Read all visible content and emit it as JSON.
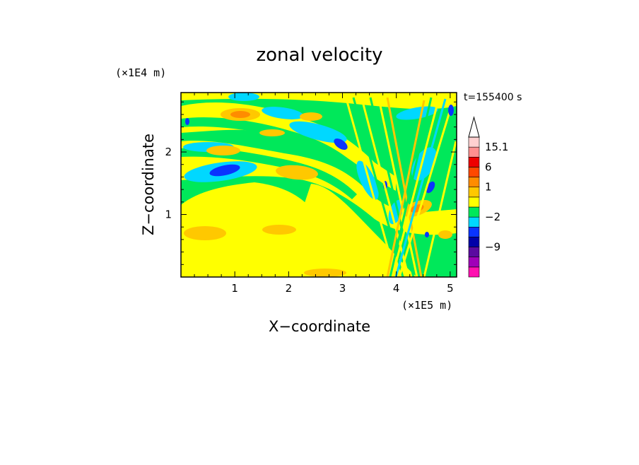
{
  "chart_data": {
    "type": "heatmap",
    "title": "zonal velocity",
    "xlabel": "X−coordinate",
    "ylabel": "Z−coordinate",
    "x_scale_note": "(×1E5 m)",
    "y_scale_note": "(×1E4 m)",
    "time_label": "t=155400 s",
    "xlim": [
      0,
      5.12
    ],
    "ylim": [
      0,
      2.95
    ],
    "x_ticks": [
      {
        "value": 1,
        "label": "1"
      },
      {
        "value": 2,
        "label": "2"
      },
      {
        "value": 3,
        "label": "3"
      },
      {
        "value": 4,
        "label": "4"
      },
      {
        "value": 5,
        "label": "5"
      }
    ],
    "y_ticks": [
      {
        "value": 1,
        "label": "1"
      },
      {
        "value": 2,
        "label": "2"
      }
    ],
    "colorbar": {
      "levels": [
        {
          "color": "#ff10b0"
        },
        {
          "color": "#a000b8"
        },
        {
          "color": "#5a0aa0"
        },
        {
          "color": "#0000a8"
        },
        {
          "color": "#0a34ff"
        },
        {
          "color": "#00d8ff"
        },
        {
          "color": "#00e85a"
        },
        {
          "color": "#ffff00"
        },
        {
          "color": "#ffc800"
        },
        {
          "color": "#ff8c00"
        },
        {
          "color": "#ff4800"
        },
        {
          "color": "#ee0000"
        },
        {
          "color": "#ff9090"
        },
        {
          "color": "#ffd0d0"
        }
      ],
      "labels": [
        {
          "text": "15.1",
          "level": 13
        },
        {
          "text": "6",
          "level": 11
        },
        {
          "text": "1",
          "level": 9
        },
        {
          "text": "−2",
          "level": 6
        },
        {
          "text": "−9",
          "level": 3
        }
      ]
    }
  }
}
